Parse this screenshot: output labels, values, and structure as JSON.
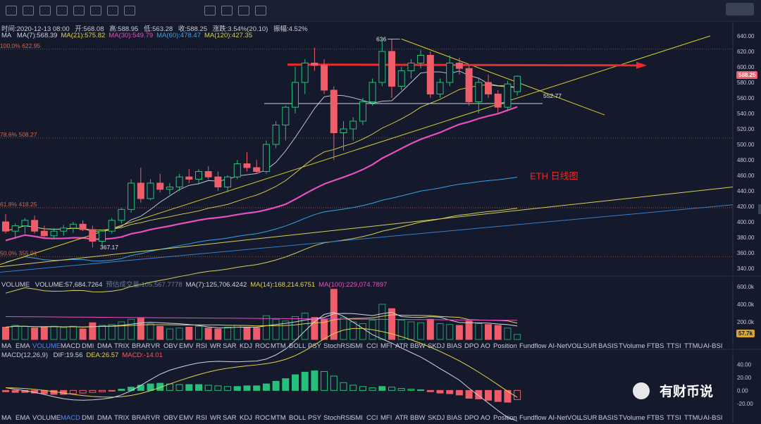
{
  "header": {
    "time": "时间:2020-12-13 08:00",
    "open": "开:568.08",
    "high": "高:588.95",
    "low": "低:563.28",
    "close": "收:588.25",
    "change": "涨跌:3.54%(20.10)",
    "amplitude": "振幅:4.52%"
  },
  "ma_legend": {
    "label": "MA",
    "items": [
      {
        "text": "MA(7):568.39",
        "color": "#d0d4de"
      },
      {
        "text": "MA(21):575.82",
        "color": "#e6d34a"
      },
      {
        "text": "MA(30):549.79",
        "color": "#e84fbf"
      },
      {
        "text": "MA(60):478.47",
        "color": "#3aa3e3"
      },
      {
        "text": "MA(120):427.35",
        "color": "#d6cf56"
      }
    ]
  },
  "volume_legend": {
    "label": "VOLUME",
    "items": [
      {
        "text": "VOLUME:57,684.7264",
        "color": "#d0d4de"
      },
      {
        "text": "预估成交量:105,567.7778",
        "color": "#6f7890"
      },
      {
        "text": "MA(7):125,706.4242",
        "color": "#d0d4de"
      },
      {
        "text": "MA(14):168,214.6751",
        "color": "#e6d34a"
      },
      {
        "text": "MA(100):229,074.7897",
        "color": "#e84fbf"
      }
    ]
  },
  "macd_legend": {
    "label": "MACD(12,26,9)",
    "items": [
      {
        "text": "DIF:19.56",
        "color": "#d0d4de"
      },
      {
        "text": "DEA:26.57",
        "color": "#e6d34a"
      },
      {
        "text": "MACD:-14.01",
        "color": "#ef5c6a"
      }
    ]
  },
  "indicator_tabs": [
    "MA",
    "EMA",
    "VOLUME",
    "MACD",
    "DMI",
    "DMA",
    "TRIX",
    "BRAR",
    "VR",
    "OBV",
    "EMV",
    "RSI",
    "WR",
    "SAR",
    "KDJ",
    "ROC",
    "MTM",
    "BOLL",
    "PSY",
    "StochRSI",
    "SMI",
    "CCI",
    "MFI",
    "ATR",
    "BBW",
    "SKDJ",
    "BIAS",
    "DPO",
    "AO",
    "Position",
    "Fundflow",
    "AI-NetVOL",
    "LSUR",
    "BASIS",
    "TVolume",
    "FTBS",
    "TTSI",
    "TTMU",
    "AI-BSI"
  ],
  "indicator_tabs_active_row1": "VOLUME",
  "indicator_tabs_active_row2": "MACD",
  "chart_data": [
    {
      "type": "candlestick",
      "title": "ETH  日线图",
      "ylim": [
        330,
        650
      ],
      "y_ticks": [
        "640.00",
        "620.00",
        "600.00",
        "580.00",
        "560.00",
        "540.00",
        "520.00",
        "500.00",
        "480.00",
        "460.00",
        "440.00",
        "420.00",
        "400.00",
        "380.00",
        "360.00",
        "340.00"
      ],
      "last_price": "588.25",
      "fib_levels": [
        {
          "label": "100.0% 622.95",
          "value": 622.95
        },
        {
          "label": "78.6% 508.27",
          "value": 508.27
        },
        {
          "label": "61.8% 418.25",
          "value": 418.25
        },
        {
          "label": "50.0% 355.01",
          "value": 355.01
        }
      ],
      "annotations": [
        {
          "text": "636",
          "value": 636
        },
        {
          "text": "552.77",
          "value": 552.77
        },
        {
          "text": "367.17",
          "value": 367.17
        }
      ],
      "candles": [
        {
          "o": 400,
          "h": 410,
          "l": 385,
          "c": 388
        },
        {
          "o": 388,
          "h": 398,
          "l": 378,
          "c": 395
        },
        {
          "o": 395,
          "h": 405,
          "l": 385,
          "c": 402
        },
        {
          "o": 402,
          "h": 408,
          "l": 385,
          "c": 388
        },
        {
          "o": 388,
          "h": 395,
          "l": 380,
          "c": 382
        },
        {
          "o": 382,
          "h": 392,
          "l": 378,
          "c": 388
        },
        {
          "o": 388,
          "h": 396,
          "l": 382,
          "c": 392
        },
        {
          "o": 392,
          "h": 400,
          "l": 386,
          "c": 397
        },
        {
          "o": 397,
          "h": 402,
          "l": 388,
          "c": 390
        },
        {
          "o": 390,
          "h": 395,
          "l": 367,
          "c": 375
        },
        {
          "o": 375,
          "h": 390,
          "l": 370,
          "c": 388
        },
        {
          "o": 388,
          "h": 405,
          "l": 385,
          "c": 402
        },
        {
          "o": 402,
          "h": 418,
          "l": 398,
          "c": 416
        },
        {
          "o": 416,
          "h": 455,
          "l": 412,
          "c": 450
        },
        {
          "o": 450,
          "h": 470,
          "l": 425,
          "c": 430
        },
        {
          "o": 430,
          "h": 455,
          "l": 428,
          "c": 450
        },
        {
          "o": 450,
          "h": 462,
          "l": 438,
          "c": 442
        },
        {
          "o": 442,
          "h": 450,
          "l": 435,
          "c": 445
        },
        {
          "o": 445,
          "h": 462,
          "l": 440,
          "c": 458
        },
        {
          "o": 458,
          "h": 468,
          "l": 450,
          "c": 455
        },
        {
          "o": 455,
          "h": 468,
          "l": 448,
          "c": 465
        },
        {
          "o": 465,
          "h": 472,
          "l": 455,
          "c": 458
        },
        {
          "o": 458,
          "h": 465,
          "l": 440,
          "c": 445
        },
        {
          "o": 445,
          "h": 460,
          "l": 438,
          "c": 458
        },
        {
          "o": 458,
          "h": 480,
          "l": 455,
          "c": 475
        },
        {
          "o": 475,
          "h": 490,
          "l": 465,
          "c": 470
        },
        {
          "o": 470,
          "h": 480,
          "l": 462,
          "c": 465
        },
        {
          "o": 465,
          "h": 505,
          "l": 462,
          "c": 500
        },
        {
          "o": 500,
          "h": 530,
          "l": 495,
          "c": 525
        },
        {
          "o": 525,
          "h": 550,
          "l": 505,
          "c": 548
        },
        {
          "o": 548,
          "h": 600,
          "l": 540,
          "c": 580
        },
        {
          "o": 580,
          "h": 610,
          "l": 565,
          "c": 605
        },
        {
          "o": 605,
          "h": 625,
          "l": 595,
          "c": 602
        },
        {
          "o": 602,
          "h": 610,
          "l": 565,
          "c": 570
        },
        {
          "o": 570,
          "h": 575,
          "l": 480,
          "c": 515
        },
        {
          "o": 515,
          "h": 530,
          "l": 492,
          "c": 520
        },
        {
          "o": 520,
          "h": 535,
          "l": 505,
          "c": 530
        },
        {
          "o": 530,
          "h": 560,
          "l": 525,
          "c": 555
        },
        {
          "o": 555,
          "h": 585,
          "l": 550,
          "c": 580
        },
        {
          "o": 580,
          "h": 635,
          "l": 575,
          "c": 620
        },
        {
          "o": 620,
          "h": 636,
          "l": 560,
          "c": 575
        },
        {
          "o": 575,
          "h": 600,
          "l": 570,
          "c": 595
        },
        {
          "o": 595,
          "h": 610,
          "l": 585,
          "c": 605
        },
        {
          "o": 605,
          "h": 622,
          "l": 598,
          "c": 615
        },
        {
          "o": 615,
          "h": 620,
          "l": 560,
          "c": 565
        },
        {
          "o": 565,
          "h": 585,
          "l": 560,
          "c": 580
        },
        {
          "o": 580,
          "h": 615,
          "l": 575,
          "c": 605
        },
        {
          "o": 605,
          "h": 612,
          "l": 590,
          "c": 598
        },
        {
          "o": 598,
          "h": 602,
          "l": 550,
          "c": 555
        },
        {
          "o": 555,
          "h": 585,
          "l": 540,
          "c": 580
        },
        {
          "o": 580,
          "h": 590,
          "l": 560,
          "c": 565
        },
        {
          "o": 565,
          "h": 570,
          "l": 540,
          "c": 548
        },
        {
          "o": 548,
          "h": 582,
          "l": 545,
          "c": 578
        },
        {
          "o": 568,
          "h": 589,
          "l": 563,
          "c": 588
        }
      ]
    },
    {
      "type": "bar",
      "name": "VOLUME",
      "ylim": [
        0,
        640000
      ],
      "y_ticks": [
        "600.0k",
        "400.0k",
        "200.0k"
      ],
      "last_value": "57.7k",
      "values": [
        140000,
        160000,
        150000,
        130000,
        145000,
        150000,
        135000,
        150000,
        120000,
        190000,
        160000,
        170000,
        200000,
        230000,
        240000,
        180000,
        150000,
        120000,
        130000,
        140000,
        150000,
        130000,
        120000,
        140000,
        160000,
        140000,
        130000,
        270000,
        230000,
        210000,
        260000,
        300000,
        250000,
        230000,
        570000,
        250000,
        200000,
        180000,
        220000,
        400000,
        350000,
        220000,
        200000,
        190000,
        230000,
        180000,
        170000,
        160000,
        210000,
        180000,
        170000,
        160000,
        130000,
        58000
      ],
      "up": [
        false,
        true,
        true,
        false,
        false,
        true,
        true,
        true,
        false,
        false,
        true,
        true,
        true,
        true,
        false,
        true,
        false,
        true,
        true,
        false,
        true,
        false,
        false,
        true,
        true,
        false,
        false,
        true,
        true,
        true,
        true,
        true,
        false,
        false,
        false,
        true,
        true,
        true,
        true,
        true,
        false,
        true,
        true,
        true,
        false,
        true,
        true,
        false,
        false,
        true,
        false,
        false,
        true,
        true
      ]
    },
    {
      "type": "bar",
      "name": "MACD(12,26,9)",
      "ylim": [
        -32,
        50
      ],
      "y_ticks": [
        "40.00",
        "20.00",
        "0.00",
        "-20.00"
      ],
      "values": [
        -2,
        -3,
        -3,
        -4,
        -5,
        -6,
        -6,
        -5,
        -4,
        -3,
        -2,
        -1,
        2,
        5,
        8,
        10,
        11,
        10,
        9,
        9,
        9,
        8,
        7,
        6,
        6,
        7,
        7,
        10,
        14,
        18,
        24,
        28,
        30,
        29,
        22,
        12,
        8,
        6,
        4,
        6,
        5,
        3,
        2,
        1,
        -2,
        -4,
        -5,
        -7,
        -12,
        -13,
        -15,
        -17,
        -18,
        -14
      ]
    }
  ],
  "watermark": "有财币说"
}
